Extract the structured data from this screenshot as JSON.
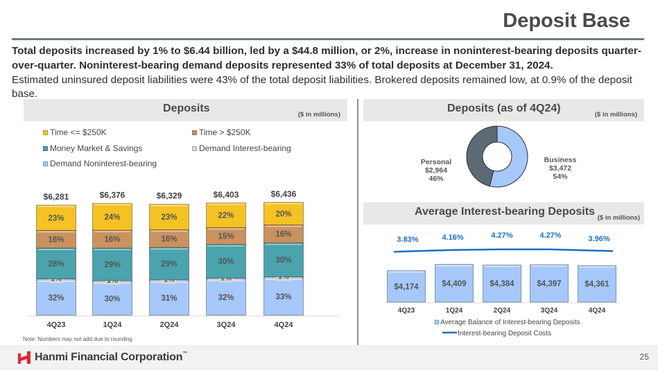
{
  "slide": {
    "title": "Deposit Base",
    "lead_bold": "Total deposits increased by 1% to $6.44 billion, led by a $44.8 million, or 2%, increase in noninterest-bearing deposits quarter-over-quarter. Noninterest-bearing demand deposits represented 33% of total deposits at December 31, 2024.",
    "lead_normal": "Estimated uninsured deposit liabilities were 43% of the total deposit liabilities. Brokered deposits remained low, at 0.9% of the deposit base.",
    "note": "Note: Numbers may not add due to rounding",
    "page_number": "25",
    "company": "Hanmi Financial Corporation",
    "company_mark": "™"
  },
  "colors": {
    "time_le_250k": "#f5c224",
    "time_gt_250k": "#c9925f",
    "money_market": "#4aa3ad",
    "demand_ib": "#d9d9d9",
    "demand_nib": "#a6c8fb",
    "personal": "#5b6a75",
    "business": "#a6c8fb",
    "cost_line": "#1a6fc4",
    "brand_red": "#e5262e"
  },
  "chart_data": [
    {
      "type": "bar",
      "stacked": true,
      "title": "Deposits",
      "unit_note": "($ in millions)",
      "categories": [
        "4Q23",
        "1Q24",
        "2Q24",
        "3Q24",
        "4Q24"
      ],
      "totals": [
        "$6,281",
        "$6,376",
        "$6,329",
        "$6,403",
        "$6,436"
      ],
      "total_values": [
        6281,
        6376,
        6329,
        6403,
        6436
      ],
      "legend_position": "top",
      "series": [
        {
          "name": "Demand Noninterest-bearing",
          "key": "demand_nib",
          "values": [
            32,
            30,
            31,
            32,
            33
          ],
          "labels": [
            "32%",
            "30%",
            "31%",
            "32%",
            "33%"
          ]
        },
        {
          "name": "Demand Interest-bearing",
          "key": "demand_ib",
          "values": [
            1,
            1,
            1,
            1,
            1
          ],
          "labels": [
            "1%",
            "1%",
            "1%",
            "1%",
            "1%"
          ]
        },
        {
          "name": "Money Market & Savings",
          "key": "money_market",
          "values": [
            28,
            29,
            29,
            30,
            30
          ],
          "labels": [
            "28%",
            "29%",
            "29%",
            "30%",
            "30%"
          ]
        },
        {
          "name": "Time > $250K",
          "key": "time_gt_250k",
          "values": [
            16,
            16,
            16,
            15,
            16
          ],
          "labels": [
            "16%",
            "16%",
            "16%",
            "15%",
            "16%"
          ]
        },
        {
          "name": "Time <= $250K",
          "key": "time_le_250k",
          "values": [
            23,
            24,
            23,
            22,
            20
          ],
          "labels": [
            "23%",
            "24%",
            "23%",
            "22%",
            "20%"
          ]
        }
      ],
      "legend": [
        "Time <= $250K",
        "Time > $250K",
        "Money Market & Savings",
        "Demand Interest-bearing",
        "Demand Noninterest-bearing"
      ]
    },
    {
      "type": "pie",
      "donut": true,
      "title": "Deposits (as of 4Q24)",
      "unit_note": "($ in millions)",
      "slices": [
        {
          "name": "Business",
          "value": 3472,
          "value_label": "$3,472",
          "percent": 54,
          "percent_label": "54%",
          "key": "business"
        },
        {
          "name": "Personal",
          "value": 2964,
          "value_label": "$2,964",
          "percent": 46,
          "percent_label": "46%",
          "key": "personal"
        }
      ]
    },
    {
      "type": "bar",
      "combo_line": true,
      "title": "Average Interest-bearing Deposits",
      "unit_note": "($ in millions)",
      "categories": [
        "4Q23",
        "1Q24",
        "2Q24",
        "3Q24",
        "4Q24"
      ],
      "series": [
        {
          "name": "Average Balance of Interest-bearing Deposits",
          "type": "bar",
          "values": [
            4174,
            4409,
            4384,
            4397,
            4361
          ],
          "labels": [
            "$4,174",
            "$4,409",
            "$4,384",
            "$4,397",
            "$4,361"
          ]
        },
        {
          "name": "Interest-bearing Deposit Costs",
          "type": "line",
          "values": [
            3.83,
            4.16,
            4.27,
            4.27,
            3.96
          ],
          "labels": [
            "3.83%",
            "4.16%",
            "4.27%",
            "4.27%",
            "3.96%"
          ]
        }
      ],
      "legend_position": "bottom"
    }
  ]
}
